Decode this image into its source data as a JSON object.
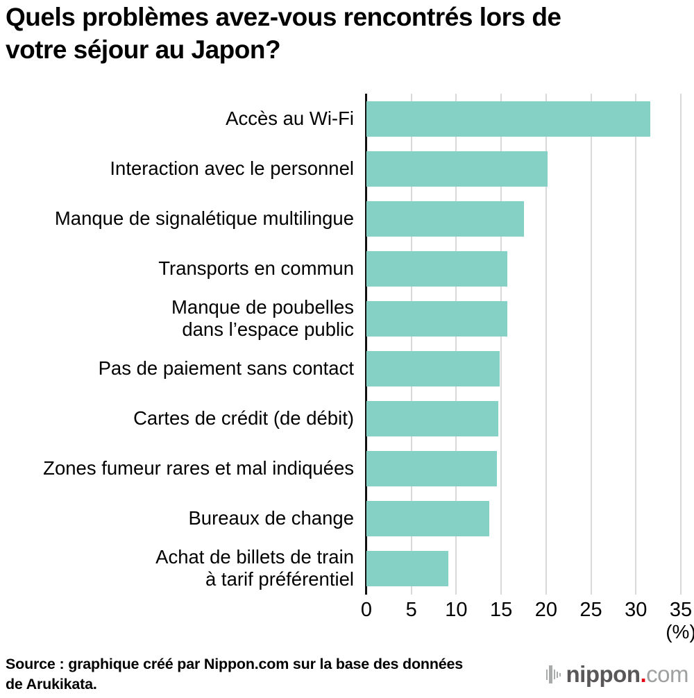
{
  "title_lines": [
    "Quels problèmes avez-vous rencontrés lors de",
    "votre séjour au Japon?"
  ],
  "chart_data": {
    "type": "bar",
    "orientation": "horizontal",
    "title": "Quels problèmes avez-vous rencontrés lors de votre séjour au Japon?",
    "categories": [
      "Accès au Wi-Fi",
      "Interaction avec le personnel",
      "Manque de signalétique multilingue",
      "Transports en commun",
      "Manque de poubelles\ndans l’espace public",
      "Pas de paiement sans contact",
      "Cartes de crédit (de débit)",
      "Zones fumeur rares et mal indiquées",
      "Bureaux de change",
      "Achat de billets de train\nà tarif préférentiel"
    ],
    "values": [
      31.6,
      20.2,
      17.5,
      15.7,
      15.7,
      14.8,
      14.7,
      14.5,
      13.7,
      9.1
    ],
    "xlabel": "(%)",
    "ylabel": "",
    "xlim": [
      0,
      35
    ],
    "xticks": [
      0,
      5,
      10,
      15,
      20,
      25,
      30,
      35
    ],
    "grid": true,
    "legend": false,
    "bar_color": "#86d1c6",
    "gridline_color": "#d9d9d9",
    "axis_color": "#101010"
  },
  "footer": {
    "source_lines": [
      "Source : graphique créé par Nippon.com sur la base des données",
      "de Arukikata."
    ],
    "logo": {
      "name": "nippon",
      "dot": ".",
      "tld": "com",
      "name_color": "#595757",
      "dot_color": "#e60012",
      "tld_color": "#9fa0a0"
    }
  }
}
